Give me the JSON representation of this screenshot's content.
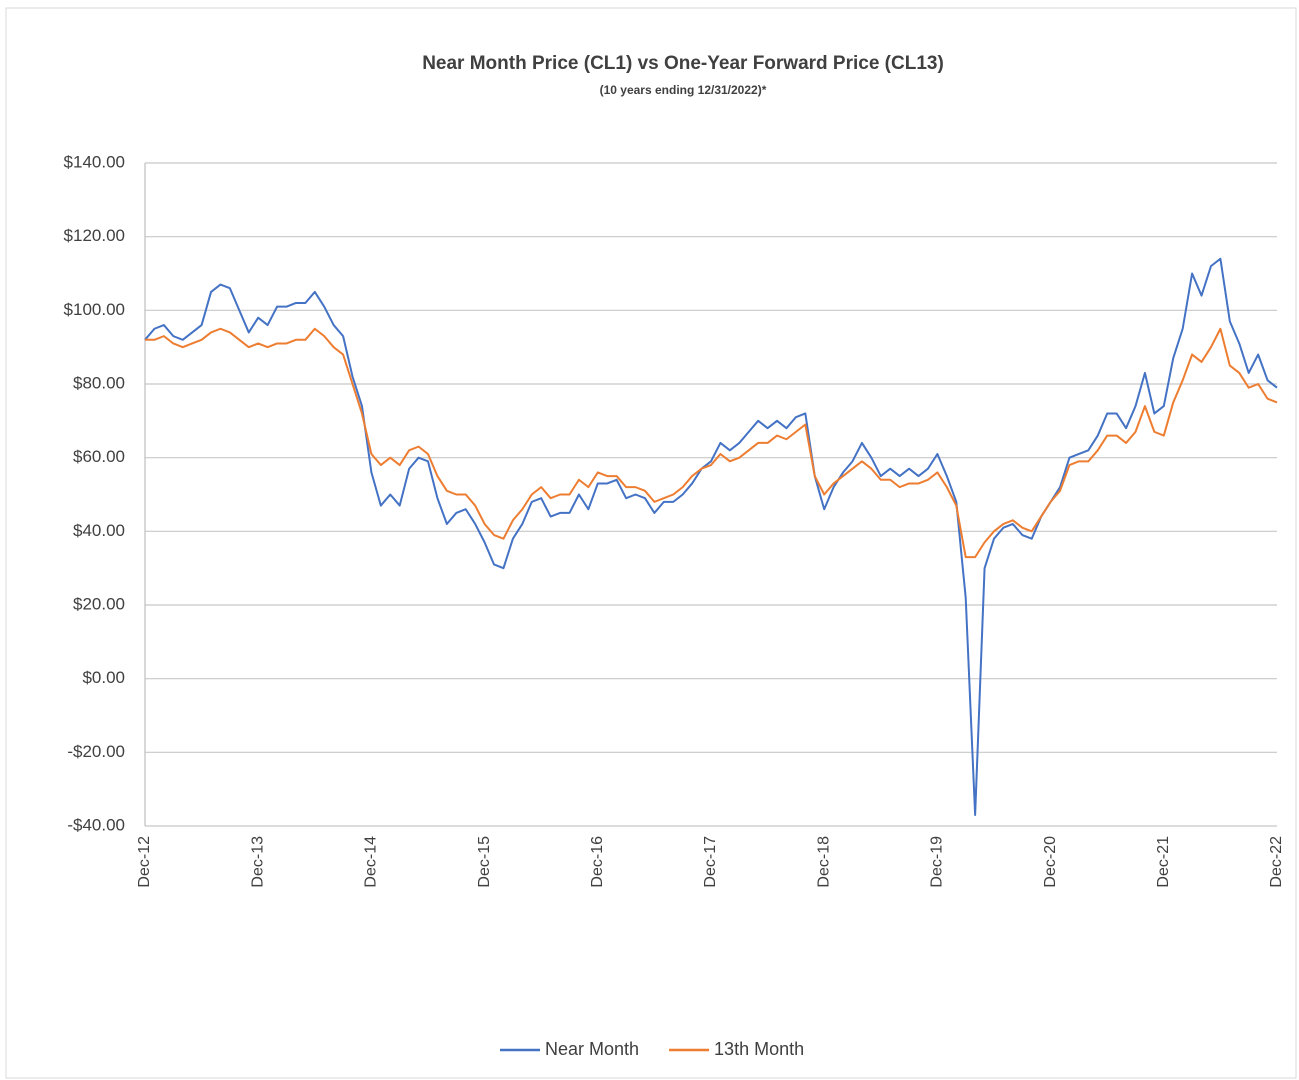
{
  "chart_data": {
    "type": "line",
    "title": "Near Month Price (CL1) vs One-Year Forward Price (CL13)",
    "subtitle": "(10 years ending 12/31/2022)*",
    "categories": [
      "Dec-12",
      null,
      null,
      null,
      null,
      null,
      null,
      null,
      null,
      null,
      null,
      null,
      "Dec-13",
      null,
      null,
      null,
      null,
      null,
      null,
      null,
      null,
      null,
      null,
      null,
      "Dec-14",
      null,
      null,
      null,
      null,
      null,
      null,
      null,
      null,
      null,
      null,
      null,
      "Dec-15",
      null,
      null,
      null,
      null,
      null,
      null,
      null,
      null,
      null,
      null,
      null,
      "Dec-16",
      null,
      null,
      null,
      null,
      null,
      null,
      null,
      null,
      null,
      null,
      null,
      "Dec-17",
      null,
      null,
      null,
      null,
      null,
      null,
      null,
      null,
      null,
      null,
      null,
      "Dec-18",
      null,
      null,
      null,
      null,
      null,
      null,
      null,
      null,
      null,
      null,
      null,
      "Dec-19",
      null,
      null,
      null,
      null,
      null,
      null,
      null,
      null,
      null,
      null,
      null,
      "Dec-20",
      null,
      null,
      null,
      null,
      null,
      null,
      null,
      null,
      null,
      null,
      null,
      "Dec-21",
      null,
      null,
      null,
      null,
      null,
      null,
      null,
      null,
      null,
      null,
      null,
      "Dec-22"
    ],
    "series": [
      {
        "name": "Near Month",
        "color": "#4472c4",
        "values": [
          92,
          95,
          96,
          93,
          92,
          94,
          96,
          105,
          107,
          106,
          100,
          94,
          98,
          96,
          101,
          101,
          102,
          102,
          105,
          101,
          96,
          93,
          82,
          74,
          56,
          47,
          50,
          47,
          57,
          60,
          59,
          49,
          42,
          45,
          46,
          42,
          37,
          31,
          30,
          38,
          42,
          48,
          49,
          44,
          45,
          45,
          50,
          46,
          53,
          53,
          54,
          49,
          50,
          49,
          45,
          48,
          48,
          50,
          53,
          57,
          59,
          64,
          62,
          64,
          67,
          70,
          68,
          70,
          68,
          71,
          72,
          55,
          46,
          52,
          56,
          59,
          64,
          60,
          55,
          57,
          55,
          57,
          55,
          57,
          61,
          55,
          48,
          22,
          -37,
          30,
          38,
          41,
          42,
          39,
          38,
          44,
          48,
          52,
          60,
          61,
          62,
          66,
          72,
          72,
          68,
          74,
          83,
          72,
          74,
          87,
          95,
          110,
          104,
          112,
          114,
          97,
          91,
          83,
          88,
          81,
          79
        ]
      },
      {
        "name": "13th Month",
        "color": "#ed7d31",
        "values": [
          92,
          92,
          93,
          91,
          90,
          91,
          92,
          94,
          95,
          94,
          92,
          90,
          91,
          90,
          91,
          91,
          92,
          92,
          95,
          93,
          90,
          88,
          80,
          72,
          61,
          58,
          60,
          58,
          62,
          63,
          61,
          55,
          51,
          50,
          50,
          47,
          42,
          39,
          38,
          43,
          46,
          50,
          52,
          49,
          50,
          50,
          54,
          52,
          56,
          55,
          55,
          52,
          52,
          51,
          48,
          49,
          50,
          52,
          55,
          57,
          58,
          61,
          59,
          60,
          62,
          64,
          64,
          66,
          65,
          67,
          69,
          55,
          50,
          53,
          55,
          57,
          59,
          57,
          54,
          54,
          52,
          53,
          53,
          54,
          56,
          52,
          47,
          33,
          33,
          37,
          40,
          42,
          43,
          41,
          40,
          44,
          48,
          51,
          58,
          59,
          59,
          62,
          66,
          66,
          64,
          67,
          74,
          67,
          66,
          75,
          81,
          88,
          86,
          90,
          95,
          85,
          83,
          79,
          80,
          76,
          75
        ]
      }
    ],
    "ylim": [
      -40,
      140
    ],
    "yticks": [
      {
        "value": -40,
        "label": "-$40.00"
      },
      {
        "value": -20,
        "label": "-$20.00"
      },
      {
        "value": 0,
        "label": "$0.00"
      },
      {
        "value": 20,
        "label": "$20.00"
      },
      {
        "value": 40,
        "label": "$40.00"
      },
      {
        "value": 60,
        "label": "$60.00"
      },
      {
        "value": 80,
        "label": "$80.00"
      },
      {
        "value": 100,
        "label": "$100.00"
      },
      {
        "value": 120,
        "label": "$120.00"
      },
      {
        "value": 140,
        "label": "$140.00"
      }
    ],
    "grid": true,
    "legend": "bottom"
  }
}
